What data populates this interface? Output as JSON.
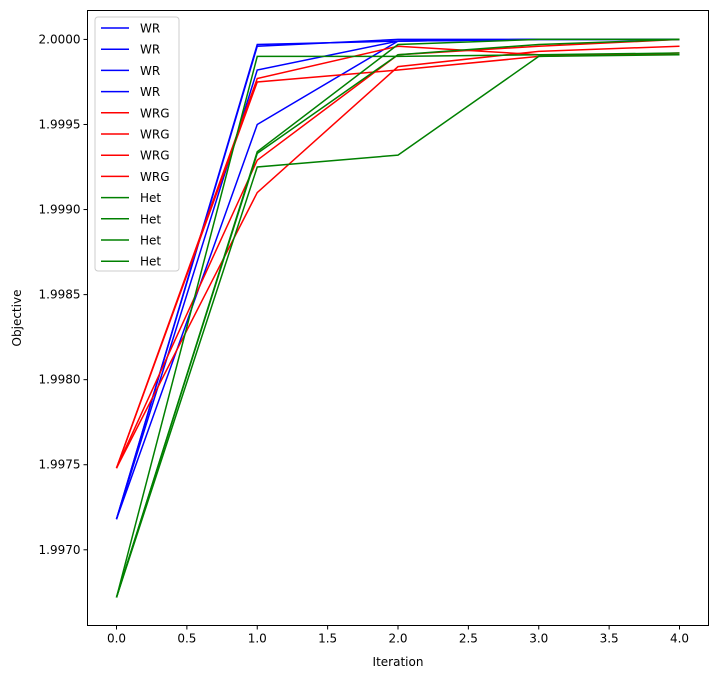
{
  "chart_data": {
    "type": "line",
    "title": "",
    "xlabel": "Iteration",
    "ylabel": "Objective",
    "xlim": [
      -0.206,
      4.206
    ],
    "ylim": [
      1.996555,
      2.00017
    ],
    "grid": false,
    "legend_placement": "upper-left",
    "x": [
      0,
      1,
      2,
      3,
      4
    ],
    "xticks": [
      "0.0",
      "0.5",
      "1.0",
      "1.5",
      "2.0",
      "2.5",
      "3.0",
      "3.5",
      "4.0"
    ],
    "xtick_values": [
      0,
      0.5,
      1,
      1.5,
      2,
      2.5,
      3,
      3.5,
      4
    ],
    "yticks": [
      "1.9970",
      "1.9975",
      "1.9980",
      "1.9985",
      "1.9990",
      "1.9995",
      "2.0000"
    ],
    "ytick_values": [
      1.997,
      1.9975,
      1.998,
      1.9985,
      1.999,
      1.9995,
      2.0
    ],
    "series": [
      {
        "name": "WR",
        "color": "#0000ff",
        "values": [
          1.99718,
          1.99997,
          1.99999,
          2.0,
          2.0
        ]
      },
      {
        "name": "WR",
        "color": "#0000ff",
        "values": [
          1.99718,
          1.99996,
          2.0,
          2.0,
          2.0
        ]
      },
      {
        "name": "WR",
        "color": "#0000ff",
        "values": [
          1.99718,
          1.99982,
          1.99999,
          2.0,
          2.0
        ]
      },
      {
        "name": "WR",
        "color": "#0000ff",
        "values": [
          1.99718,
          1.9995,
          1.99999,
          2.0,
          2.0
        ]
      },
      {
        "name": "WRG",
        "color": "#ff0000",
        "values": [
          1.99748,
          1.99977,
          1.99996,
          1.99991,
          1.99991
        ]
      },
      {
        "name": "WRG",
        "color": "#ff0000",
        "values": [
          1.99748,
          1.99975,
          1.99982,
          1.9999,
          1.99992
        ]
      },
      {
        "name": "WRG",
        "color": "#ff0000",
        "values": [
          1.99748,
          1.99929,
          1.99991,
          1.99996,
          2.0
        ]
      },
      {
        "name": "WRG",
        "color": "#ff0000",
        "values": [
          1.99748,
          1.9991,
          1.99984,
          1.99993,
          1.99996
        ]
      },
      {
        "name": "Het",
        "color": "#008000",
        "values": [
          1.99672,
          1.9999,
          1.9999,
          1.99991,
          1.99992
        ]
      },
      {
        "name": "Het",
        "color": "#008000",
        "values": [
          1.99672,
          1.99934,
          1.99997,
          2.0,
          2.0
        ]
      },
      {
        "name": "Het",
        "color": "#008000",
        "values": [
          1.99672,
          1.99933,
          1.99991,
          1.99997,
          2.0
        ]
      },
      {
        "name": "Het",
        "color": "#008000",
        "values": [
          1.99672,
          1.99925,
          1.99932,
          1.9999,
          1.99991
        ]
      }
    ]
  }
}
